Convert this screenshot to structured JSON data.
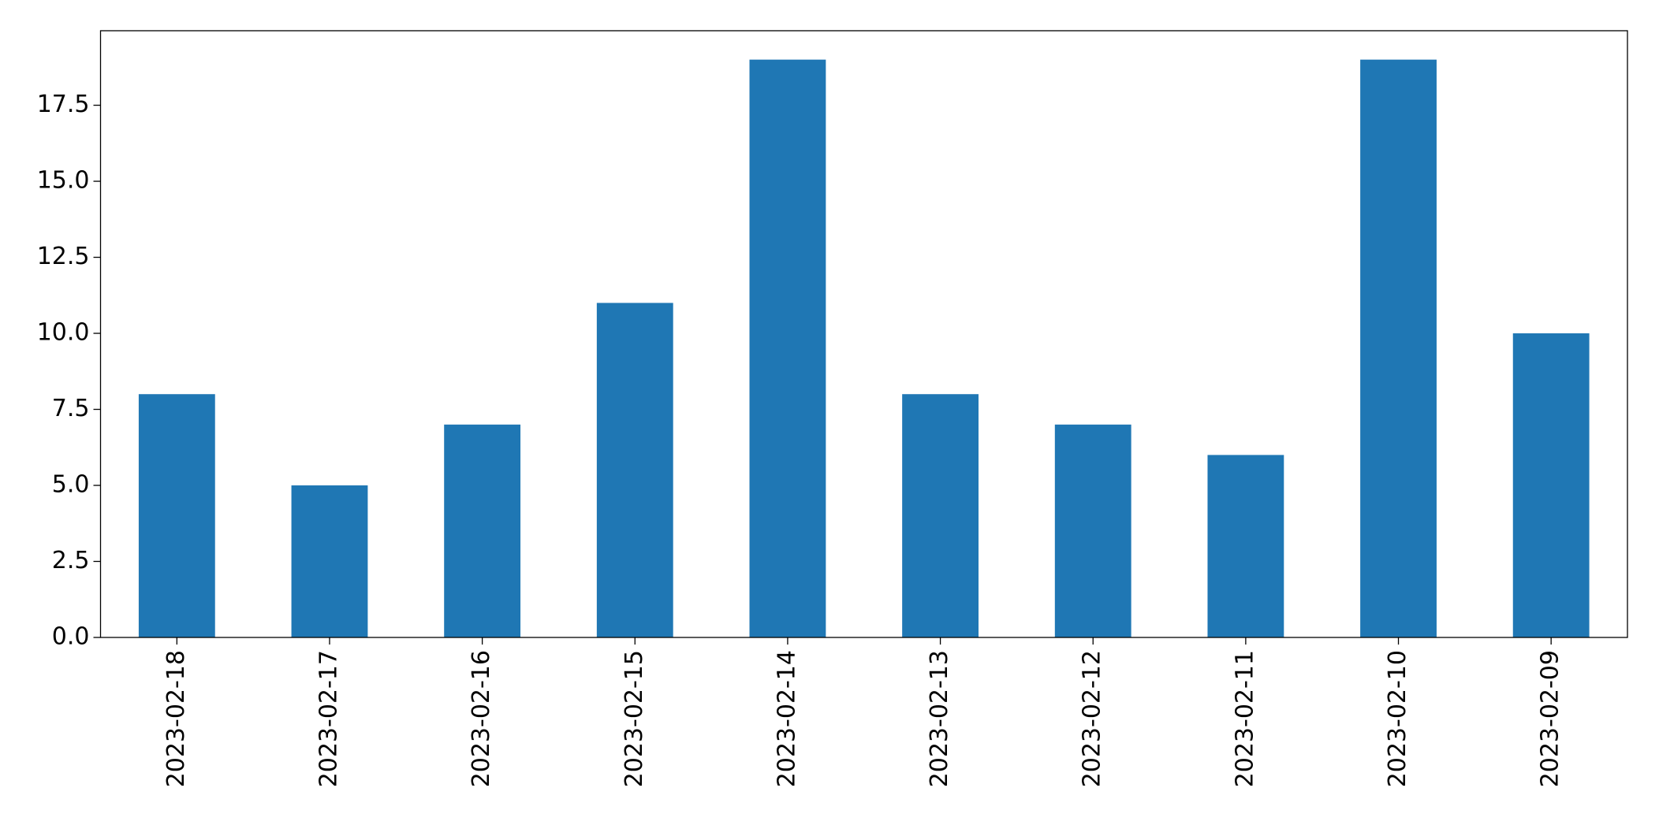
{
  "chart_data": {
    "type": "bar",
    "categories": [
      "2023-02-18",
      "2023-02-17",
      "2023-02-16",
      "2023-02-15",
      "2023-02-14",
      "2023-02-13",
      "2023-02-12",
      "2023-02-11",
      "2023-02-10",
      "2023-02-09"
    ],
    "values": [
      8,
      5,
      7,
      11,
      19,
      8,
      7,
      6,
      19,
      10
    ],
    "color": "#1f77b4",
    "ylim": [
      0,
      19.95
    ],
    "yticks": [
      {
        "value": 0,
        "label": "0.0"
      },
      2.5,
      {
        "value": 5,
        "label": "5.0"
      },
      7.5,
      {
        "value": 10,
        "label": "10.0"
      },
      12.5,
      {
        "value": 15,
        "label": "15.0"
      },
      17.5
    ],
    "grid": false
  }
}
